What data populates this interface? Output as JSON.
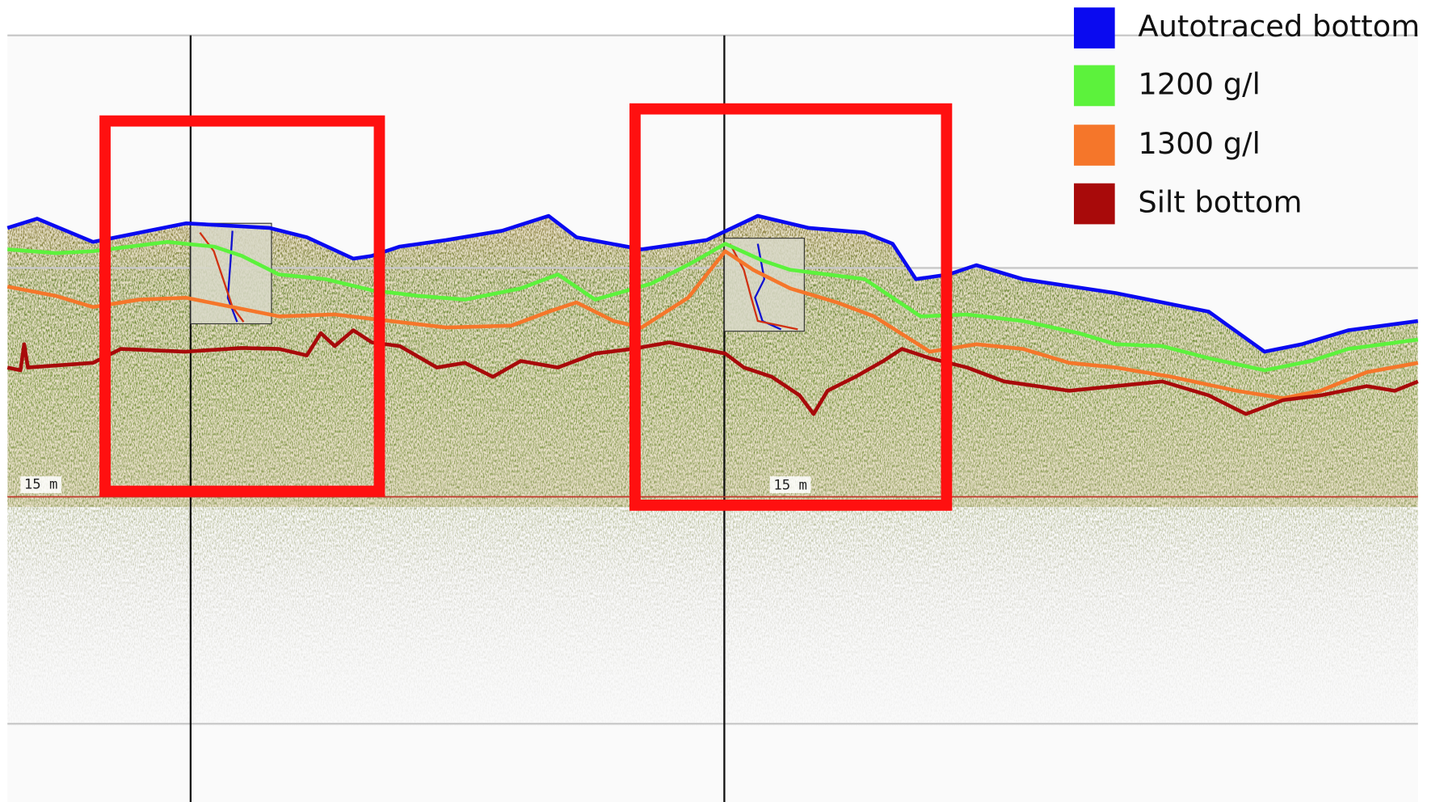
{
  "legend": [
    {
      "label": "Autotraced bottom",
      "color": "#0a0af0"
    },
    {
      "label": "1200 g/l",
      "color": "#5cf23c"
    },
    {
      "label": "1300 g/l",
      "color": "#f5762a"
    },
    {
      "label": "Silt bottom",
      "color": "#a80a0a"
    }
  ],
  "depth_labels": [
    "15 m",
    "15 m"
  ]
}
